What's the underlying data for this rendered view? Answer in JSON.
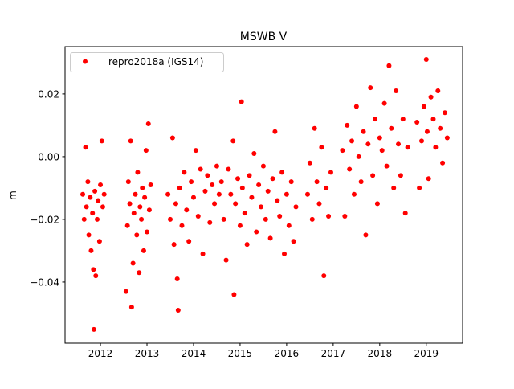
{
  "chart_data": {
    "type": "scatter",
    "title": "MSWB V",
    "xlabel": "",
    "ylabel": "m",
    "xlim": [
      2011.24,
      2019.78
    ],
    "ylim": [
      -0.0595,
      0.0351
    ],
    "grid": false,
    "legend_placement": "top-left",
    "xticks": [
      2012,
      2013,
      2014,
      2015,
      2016,
      2017,
      2018,
      2019
    ],
    "xtick_labels": [
      "2012",
      "2013",
      "2014",
      "2015",
      "2016",
      "2017",
      "2018",
      "2019"
    ],
    "yticks": [
      0.02,
      0.0,
      -0.02,
      -0.04
    ],
    "ytick_labels": [
      "0.02",
      "0.00",
      "−0.02",
      "−0.04"
    ],
    "series": [
      {
        "name": "repro2018a (IGS14)",
        "color": "#ff0000",
        "marker": "circle",
        "x": [
          2011.62,
          2011.65,
          2011.68,
          2011.7,
          2011.73,
          2011.75,
          2011.78,
          2011.8,
          2011.83,
          2011.85,
          2011.86,
          2011.88,
          2011.9,
          2011.93,
          2011.95,
          2011.98,
          2012.0,
          2012.03,
          2012.05,
          2012.08,
          2012.55,
          2012.58,
          2012.6,
          2012.63,
          2012.65,
          2012.67,
          2012.7,
          2012.72,
          2012.75,
          2012.78,
          2012.8,
          2012.83,
          2012.85,
          2012.88,
          2012.9,
          2012.93,
          2012.95,
          2012.98,
          2013.0,
          2013.03,
          2013.05,
          2013.08,
          2013.45,
          2013.5,
          2013.55,
          2013.58,
          2013.62,
          2013.65,
          2013.67,
          2013.7,
          2013.75,
          2013.8,
          2013.85,
          2013.9,
          2013.95,
          2014.0,
          2014.05,
          2014.1,
          2014.15,
          2014.2,
          2014.25,
          2014.3,
          2014.35,
          2014.4,
          2014.45,
          2014.5,
          2014.55,
          2014.6,
          2014.65,
          2014.7,
          2014.75,
          2014.8,
          2014.85,
          2014.87,
          2014.9,
          2014.95,
          2015.0,
          2015.03,
          2015.05,
          2015.1,
          2015.15,
          2015.2,
          2015.25,
          2015.3,
          2015.35,
          2015.4,
          2015.45,
          2015.5,
          2015.55,
          2015.6,
          2015.65,
          2015.7,
          2015.75,
          2015.8,
          2015.85,
          2015.9,
          2015.95,
          2016.0,
          2016.05,
          2016.1,
          2016.15,
          2016.2,
          2016.45,
          2016.5,
          2016.55,
          2016.6,
          2016.65,
          2016.7,
          2016.75,
          2016.8,
          2016.85,
          2016.9,
          2016.95,
          2017.2,
          2017.25,
          2017.3,
          2017.35,
          2017.4,
          2017.45,
          2017.5,
          2017.55,
          2017.6,
          2017.65,
          2017.7,
          2017.75,
          2017.8,
          2017.85,
          2017.9,
          2017.95,
          2018.0,
          2018.05,
          2018.1,
          2018.15,
          2018.2,
          2018.25,
          2018.3,
          2018.35,
          2018.4,
          2018.45,
          2018.5,
          2018.55,
          2018.6,
          2018.8,
          2018.85,
          2018.9,
          2018.95,
          2019.0,
          2019.02,
          2019.05,
          2019.1,
          2019.15,
          2019.2,
          2019.25,
          2019.3,
          2019.35,
          2019.4,
          2019.45
        ],
        "y": [
          -0.012,
          -0.02,
          0.003,
          -0.016,
          -0.008,
          -0.025,
          -0.013,
          -0.03,
          -0.018,
          -0.036,
          -0.0551,
          -0.011,
          -0.038,
          -0.02,
          -0.014,
          -0.027,
          -0.009,
          0.005,
          -0.016,
          -0.012,
          -0.043,
          -0.022,
          -0.008,
          -0.015,
          0.005,
          -0.048,
          -0.034,
          -0.018,
          -0.012,
          -0.025,
          -0.005,
          -0.037,
          -0.016,
          -0.02,
          -0.01,
          -0.03,
          -0.013,
          0.002,
          -0.024,
          0.0105,
          -0.017,
          -0.009,
          -0.012,
          -0.02,
          0.006,
          -0.028,
          -0.015,
          -0.039,
          -0.049,
          -0.01,
          -0.022,
          -0.005,
          -0.017,
          -0.027,
          -0.008,
          -0.013,
          0.002,
          -0.019,
          -0.004,
          -0.031,
          -0.011,
          -0.006,
          -0.021,
          -0.009,
          -0.015,
          -0.003,
          -0.012,
          -0.008,
          -0.02,
          -0.033,
          -0.004,
          -0.012,
          0.005,
          -0.044,
          -0.015,
          -0.007,
          -0.022,
          0.0175,
          -0.01,
          -0.018,
          -0.028,
          -0.006,
          -0.013,
          0.001,
          -0.024,
          -0.009,
          -0.016,
          -0.003,
          -0.02,
          -0.011,
          -0.026,
          -0.007,
          0.008,
          -0.014,
          -0.019,
          -0.005,
          -0.031,
          -0.012,
          -0.022,
          -0.008,
          -0.027,
          -0.016,
          -0.012,
          -0.002,
          -0.02,
          0.009,
          -0.008,
          -0.015,
          0.003,
          -0.038,
          -0.01,
          -0.019,
          -0.005,
          0.002,
          -0.019,
          0.01,
          -0.004,
          0.005,
          -0.012,
          0.016,
          0.0,
          -0.008,
          0.008,
          -0.025,
          0.004,
          0.022,
          -0.006,
          0.012,
          -0.015,
          0.006,
          0.002,
          0.017,
          -0.003,
          0.029,
          0.009,
          -0.01,
          0.021,
          0.004,
          -0.006,
          0.012,
          -0.018,
          0.003,
          0.011,
          -0.01,
          0.005,
          0.016,
          0.031,
          0.008,
          -0.007,
          0.019,
          0.012,
          0.003,
          0.021,
          0.009,
          -0.002,
          0.014,
          0.006
        ]
      }
    ]
  }
}
